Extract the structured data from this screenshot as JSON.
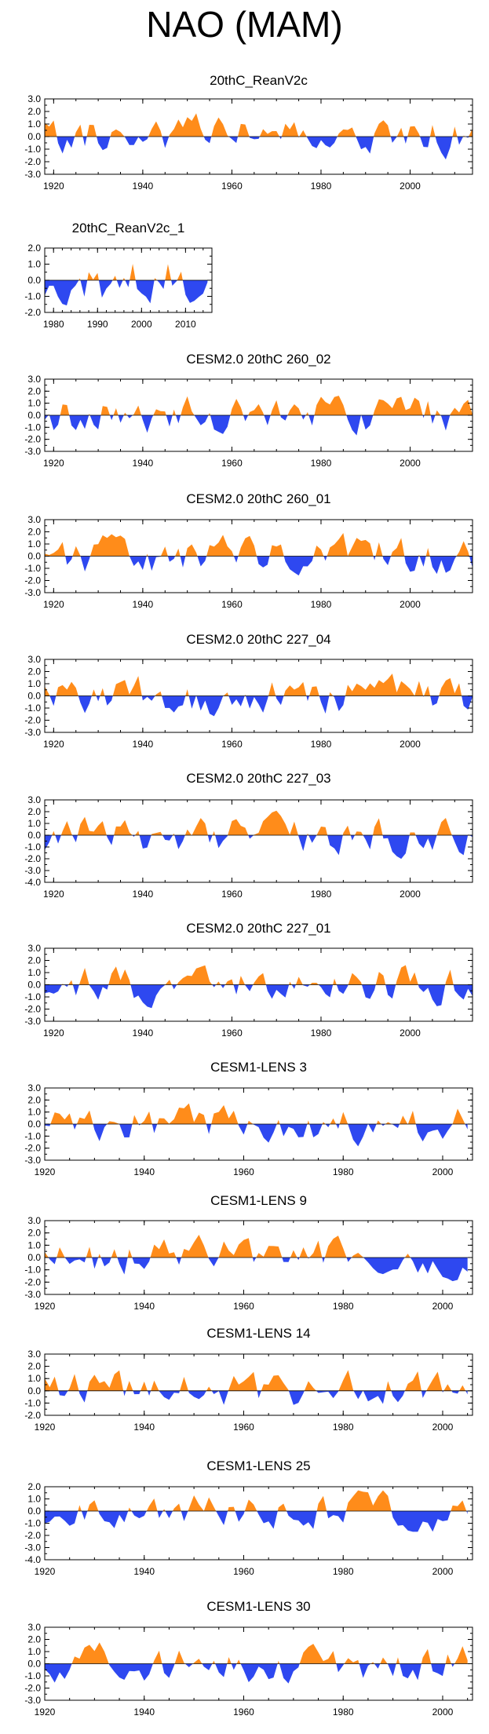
{
  "title": "NAO (MAM)",
  "colors": {
    "positive": "#ff8c1a",
    "negative": "#2e48f0",
    "axis": "#000000"
  },
  "chart_data": [
    {
      "type": "area",
      "title": "20thC_ReanV2c",
      "xlim": [
        1918,
        2014
      ],
      "ylim": [
        -3,
        3
      ],
      "yticks": [
        "3.0",
        "2.0",
        "1.0",
        "0.0",
        "-1.0",
        "-2.0",
        "-3.0"
      ],
      "xticks": [
        "1920",
        "1940",
        "1960",
        "1980",
        "2000"
      ],
      "x_start": 1918,
      "x_end": 2014,
      "seed": 11
    },
    {
      "type": "area",
      "title": "20thC_ReanV2c_1",
      "xlim": [
        1978,
        2016
      ],
      "ylim": [
        -2,
        2
      ],
      "yticks": [
        "2.0",
        "1.0",
        "0.0",
        "-1.0",
        "-2.0"
      ],
      "xticks": [
        "1980",
        "1990",
        "2000",
        "2010"
      ],
      "x_start": 1978,
      "x_end": 2015,
      "seed": 12
    },
    {
      "type": "area",
      "title": "CESM2.0 20thC 260_02",
      "xlim": [
        1918,
        2014
      ],
      "ylim": [
        -3,
        3
      ],
      "yticks": [
        "3.0",
        "2.0",
        "1.0",
        "0.0",
        "-1.0",
        "-2.0",
        "-3.0"
      ],
      "xticks": [
        "1920",
        "1940",
        "1960",
        "1980",
        "2000"
      ],
      "x_start": 1918,
      "x_end": 2014,
      "seed": 13
    },
    {
      "type": "area",
      "title": "CESM2.0 20thC 260_01",
      "xlim": [
        1918,
        2014
      ],
      "ylim": [
        -3,
        3
      ],
      "yticks": [
        "3.0",
        "2.0",
        "1.0",
        "0.0",
        "-1.0",
        "-2.0",
        "-3.0"
      ],
      "xticks": [
        "1920",
        "1940",
        "1960",
        "1980",
        "2000"
      ],
      "x_start": 1918,
      "x_end": 2014,
      "seed": 14
    },
    {
      "type": "area",
      "title": "CESM2.0 20thC 227_04",
      "xlim": [
        1918,
        2014
      ],
      "ylim": [
        -3,
        3
      ],
      "yticks": [
        "3.0",
        "2.0",
        "1.0",
        "0.0",
        "-1.0",
        "-2.0",
        "-3.0"
      ],
      "xticks": [
        "1920",
        "1940",
        "1960",
        "1980",
        "2000"
      ],
      "x_start": 1918,
      "x_end": 2014,
      "seed": 15
    },
    {
      "type": "area",
      "title": "CESM2.0 20thC 227_03",
      "xlim": [
        1918,
        2014
      ],
      "ylim": [
        -4,
        3
      ],
      "yticks": [
        "3.0",
        "2.0",
        "1.0",
        "0.0",
        "-1.0",
        "-2.0",
        "-3.0",
        "-4.0"
      ],
      "xticks": [
        "1920",
        "1940",
        "1960",
        "1980",
        "2000"
      ],
      "x_start": 1918,
      "x_end": 2014,
      "seed": 16
    },
    {
      "type": "area",
      "title": "CESM2.0 20thC 227_01",
      "xlim": [
        1918,
        2014
      ],
      "ylim": [
        -3,
        3
      ],
      "yticks": [
        "3.0",
        "2.0",
        "1.0",
        "0.0",
        "-1.0",
        "-2.0",
        "-3.0"
      ],
      "xticks": [
        "1920",
        "1940",
        "1960",
        "1980",
        "2000"
      ],
      "x_start": 1918,
      "x_end": 2014,
      "seed": 17
    },
    {
      "type": "area",
      "title": "CESM1-LENS 3",
      "xlim": [
        1920,
        2006
      ],
      "ylim": [
        -3,
        3
      ],
      "yticks": [
        "3.0",
        "2.0",
        "1.0",
        "0.0",
        "-1.0",
        "-2.0",
        "-3.0"
      ],
      "xticks": [
        "1920",
        "1940",
        "1960",
        "1980",
        "2000"
      ],
      "x_start": 1920,
      "x_end": 2005,
      "seed": 18
    },
    {
      "type": "area",
      "title": "CESM1-LENS 9",
      "xlim": [
        1920,
        2006
      ],
      "ylim": [
        -3,
        3
      ],
      "yticks": [
        "3.0",
        "2.0",
        "1.0",
        "0.0",
        "-1.0",
        "-2.0",
        "-3.0"
      ],
      "xticks": [
        "1920",
        "1940",
        "1960",
        "1980",
        "2000"
      ],
      "x_start": 1920,
      "x_end": 2005,
      "seed": 19
    },
    {
      "type": "area",
      "title": "CESM1-LENS 14",
      "xlim": [
        1920,
        2006
      ],
      "ylim": [
        -2,
        3
      ],
      "yticks": [
        "3.0",
        "2.0",
        "1.0",
        "0.0",
        "-1.0",
        "-2.0"
      ],
      "xticks": [
        "1920",
        "1940",
        "1960",
        "1980",
        "2000"
      ],
      "x_start": 1920,
      "x_end": 2005,
      "seed": 20
    },
    {
      "type": "area",
      "title": "CESM1-LENS 25",
      "xlim": [
        1920,
        2006
      ],
      "ylim": [
        -4,
        2
      ],
      "yticks": [
        "2.0",
        "1.0",
        "0.0",
        "-1.0",
        "-2.0",
        "-3.0",
        "-4.0"
      ],
      "xticks": [
        "1920",
        "1940",
        "1960",
        "1980",
        "2000"
      ],
      "x_start": 1920,
      "x_end": 2005,
      "seed": 21
    },
    {
      "type": "area",
      "title": "CESM1-LENS 30",
      "xlim": [
        1920,
        2006
      ],
      "ylim": [
        -3,
        3
      ],
      "yticks": [
        "3.0",
        "2.0",
        "1.0",
        "0.0",
        "-1.0",
        "-2.0",
        "-3.0"
      ],
      "xticks": [
        "1920",
        "1940",
        "1960",
        "1980",
        "2000"
      ],
      "x_start": 1920,
      "x_end": 2005,
      "seed": 22
    }
  ]
}
